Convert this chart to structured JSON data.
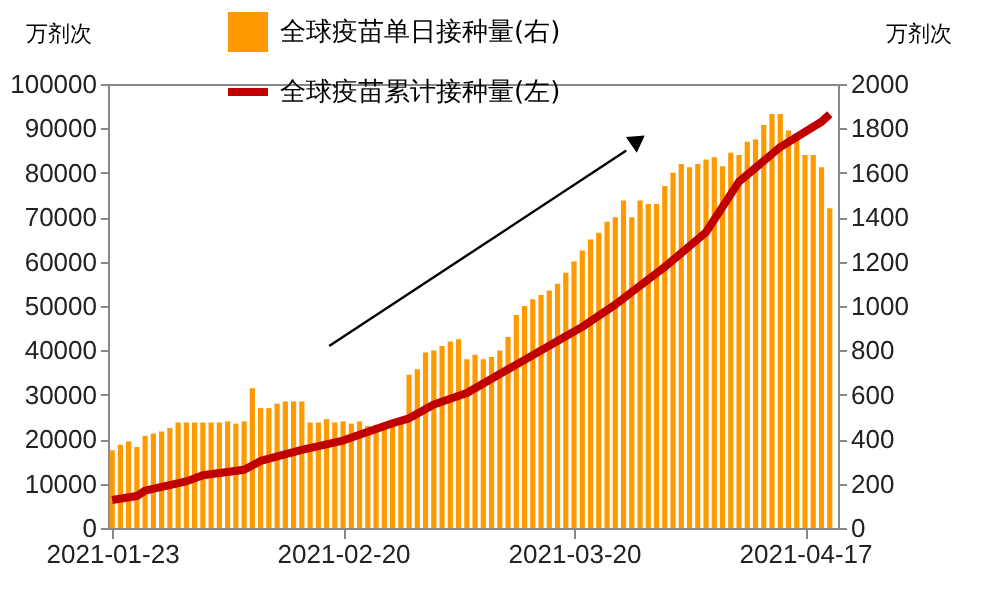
{
  "chart_data": {
    "type": "bar",
    "ylabel": "万剂次",
    "y2label": "万剂次",
    "legend": "top",
    "grid": false,
    "marker": "none",
    "line_style": "solid",
    "xlim": [
      "2021-01-22T12:00",
      "2021-04-21"
    ],
    "xticks": [
      "2021-01-23",
      "2021-02-20",
      "2021-03-20",
      "2021-04-17"
    ],
    "ylim": [
      0,
      100000
    ],
    "yticks": [
      0,
      10000,
      20000,
      30000,
      40000,
      50000,
      60000,
      70000,
      80000,
      90000,
      100000
    ],
    "y2lim": [
      0,
      2000
    ],
    "y2ticks": [
      0,
      200,
      400,
      600,
      800,
      1000,
      1200,
      1400,
      1600,
      1800,
      2000
    ],
    "x": [
      "2021-01-23",
      "2021-01-24",
      "2021-01-25",
      "2021-01-26",
      "2021-01-27",
      "2021-01-28",
      "2021-01-29",
      "2021-01-30",
      "2021-01-31",
      "2021-02-01",
      "2021-02-02",
      "2021-02-03",
      "2021-02-04",
      "2021-02-05",
      "2021-02-06",
      "2021-02-07",
      "2021-02-08",
      "2021-02-09",
      "2021-02-10",
      "2021-02-11",
      "2021-02-12",
      "2021-02-13",
      "2021-02-14",
      "2021-02-15",
      "2021-02-16",
      "2021-02-17",
      "2021-02-18",
      "2021-02-19",
      "2021-02-20",
      "2021-02-21",
      "2021-02-22",
      "2021-02-23",
      "2021-02-24",
      "2021-02-25",
      "2021-02-26",
      "2021-02-27",
      "2021-02-28",
      "2021-03-01",
      "2021-03-02",
      "2021-03-03",
      "2021-03-04",
      "2021-03-05",
      "2021-03-06",
      "2021-03-07",
      "2021-03-08",
      "2021-03-09",
      "2021-03-10",
      "2021-03-11",
      "2021-03-12",
      "2021-03-13",
      "2021-03-14",
      "2021-03-15",
      "2021-03-16",
      "2021-03-17",
      "2021-03-18",
      "2021-03-19",
      "2021-03-20",
      "2021-03-21",
      "2021-03-22",
      "2021-03-23",
      "2021-03-24",
      "2021-03-25",
      "2021-03-26",
      "2021-03-27",
      "2021-03-28",
      "2021-03-29",
      "2021-03-30",
      "2021-03-31",
      "2021-04-01",
      "2021-04-02",
      "2021-04-03",
      "2021-04-04",
      "2021-04-05",
      "2021-04-06",
      "2021-04-07",
      "2021-04-08",
      "2021-04-09",
      "2021-04-10",
      "2021-04-11",
      "2021-04-12",
      "2021-04-13",
      "2021-04-14",
      "2021-04-15",
      "2021-04-16",
      "2021-04-17",
      "2021-04-18",
      "2021-04-19",
      "2021-04-20"
    ],
    "series": [
      {
        "name": "全球疫苗单日接种量(右)",
        "axis": "y2",
        "color": "#ff9900",
        "values": [
          350,
          375,
          390,
          365,
          415,
          425,
          435,
          450,
          475,
          475,
          475,
          475,
          475,
          475,
          480,
          470,
          480,
          630,
          540,
          540,
          560,
          570,
          570,
          570,
          475,
          475,
          490,
          475,
          480,
          470,
          480,
          460,
          465,
          470,
          470,
          470,
          690,
          715,
          790,
          800,
          820,
          840,
          850,
          760,
          780,
          760,
          770,
          800,
          860,
          960,
          1000,
          1030,
          1050,
          1070,
          1100,
          1150,
          1200,
          1250,
          1300,
          1330,
          1380,
          1400,
          1475,
          1400,
          1475,
          1460,
          1460,
          1540,
          1600,
          1640,
          1625,
          1640,
          1660,
          1670,
          1630,
          1690,
          1680,
          1740,
          1750,
          1815,
          1865,
          1865,
          1790,
          1760,
          1680,
          1680,
          1625,
          1440
        ]
      },
      {
        "name": "全球疫苗累计接种量(左)",
        "type": "line",
        "axis": "y",
        "color": "#c00000",
        "x": [
          "2021-01-23",
          "2021-01-26",
          "2021-01-27",
          "2021-02-01",
          "2021-02-03",
          "2021-02-08",
          "2021-02-10",
          "2021-02-15",
          "2021-02-20",
          "2021-02-26",
          "2021-02-28",
          "2021-03-03",
          "2021-03-07",
          "2021-03-13",
          "2021-03-19",
          "2021-03-21",
          "2021-03-25",
          "2021-03-31",
          "2021-04-05",
          "2021-04-09",
          "2021-04-14",
          "2021-04-19",
          "2021-04-20"
        ],
        "values": [
          6300,
          7200,
          8400,
          10500,
          11900,
          13100,
          15100,
          17600,
          19700,
          23600,
          24700,
          27800,
          30400,
          36800,
          43200,
          45300,
          50300,
          58800,
          66600,
          78000,
          85800,
          91500,
          93200
        ]
      }
    ]
  }
}
